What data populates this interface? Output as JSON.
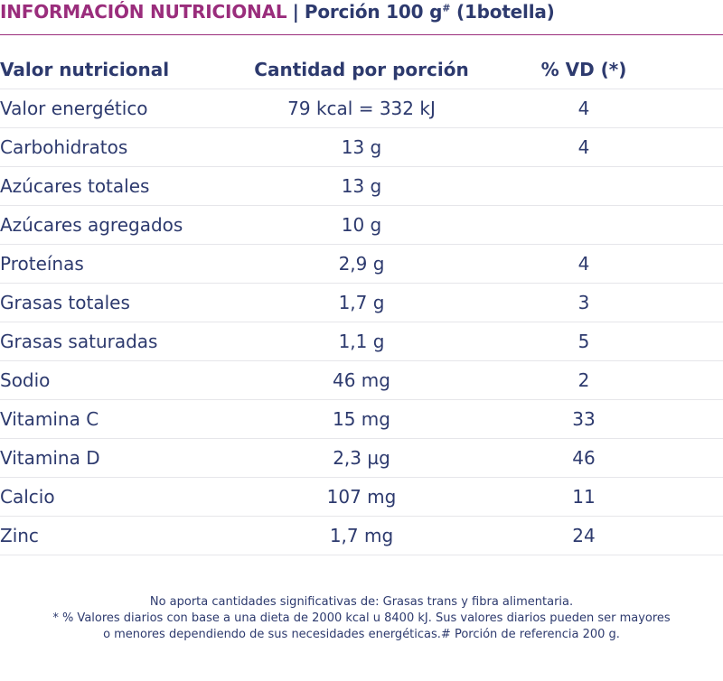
{
  "title": {
    "brand": "INFORMACIÓN NUTRICIONAL",
    "separator": "|",
    "portion": "Porción 100 g",
    "portion_mark": "#",
    "portion_note": "(1botella)"
  },
  "table": {
    "headers": [
      "Valor nutricional",
      "Cantidad por porción",
      "% VD (*)"
    ],
    "rows": [
      {
        "name": "Valor energético",
        "amount": "79 kcal = 332 kJ",
        "vd": "4"
      },
      {
        "name": "Carbohidratos",
        "amount": "13 g",
        "vd": "4"
      },
      {
        "name": "Azúcares totales",
        "amount": "13 g",
        "vd": ""
      },
      {
        "name": "Azúcares agregados",
        "amount": "10 g",
        "vd": ""
      },
      {
        "name": "Proteínas",
        "amount": "2,9 g",
        "vd": "4"
      },
      {
        "name": "Grasas totales",
        "amount": "1,7 g",
        "vd": "3"
      },
      {
        "name": "Grasas saturadas",
        "amount": "1,1 g",
        "vd": "5"
      },
      {
        "name": "Sodio",
        "amount": "46 mg",
        "vd": "2"
      },
      {
        "name": "Vitamina C",
        "amount": "15 mg",
        "vd": "33"
      },
      {
        "name": "Vitamina D",
        "amount": "2,3 µg",
        "vd": "46"
      },
      {
        "name": "Calcio",
        "amount": "107 mg",
        "vd": "11"
      },
      {
        "name": "Zinc",
        "amount": "1,7 mg",
        "vd": "24"
      }
    ]
  },
  "footnotes": [
    "No aporta cantidades significativas de: Grasas trans y fibra alimentaria.",
    "* % Valores diarios con base a una dieta  de 2000 kcal u 8400 kJ. Sus valores diarios pueden ser mayores",
    "o menores dependiendo de sus necesidades energéticas.# Porción de referencia 200 g."
  ],
  "colors": {
    "brand": "#9a2d7c",
    "text": "#2d3a6e",
    "row_divider": "#e6e6ea"
  }
}
